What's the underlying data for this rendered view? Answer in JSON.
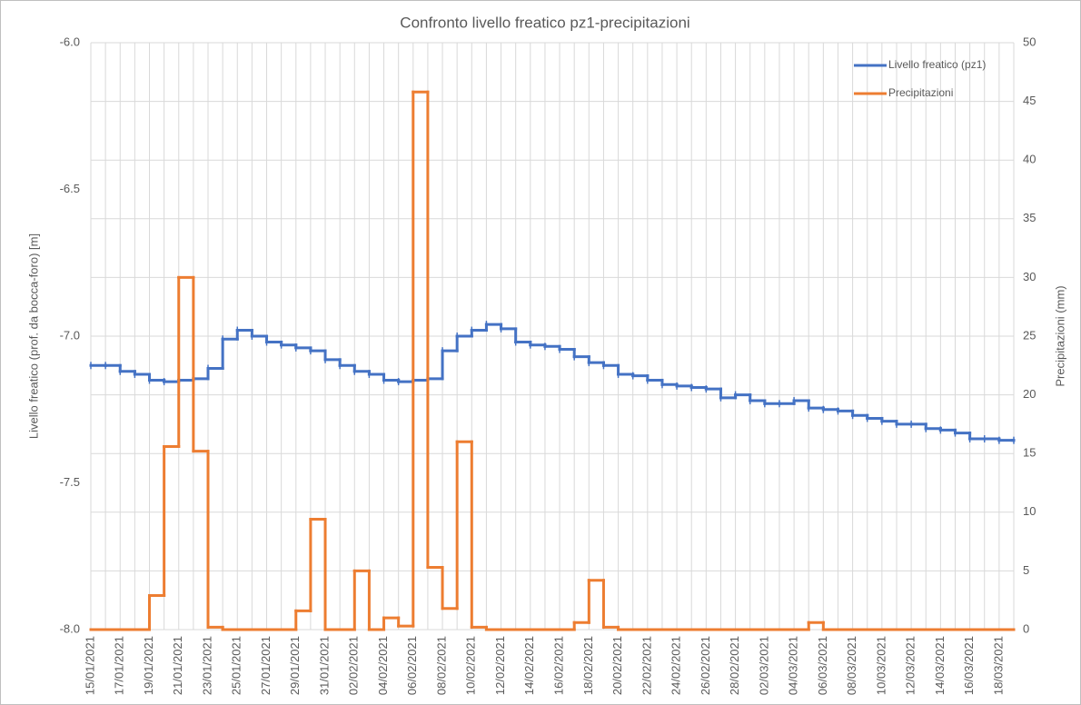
{
  "chart_data": {
    "type": "step-line",
    "title": "Confronto livello freatico pz1-precipitazioni",
    "y_label": "Livello freatico (prof. da bocca-foro) [m]",
    "y2_label": "Precipitazioni (mm)",
    "categories": [
      "15/01/2021",
      null,
      "17/01/2021",
      null,
      "19/01/2021",
      null,
      "21/01/2021",
      null,
      "23/01/2021",
      null,
      "25/01/2021",
      null,
      "27/01/2021",
      null,
      "29/01/2021",
      null,
      "31/01/2021",
      null,
      "02/02/2021",
      null,
      "04/02/2021",
      null,
      "06/02/2021",
      null,
      "08/02/2021",
      null,
      "10/02/2021",
      null,
      "12/02/2021",
      null,
      "14/02/2021",
      null,
      "16/02/2021",
      null,
      "18/02/2021",
      null,
      "20/02/2021",
      null,
      "22/02/2021",
      null,
      "24/02/2021",
      null,
      "26/02/2021",
      null,
      "28/02/2021",
      null,
      "02/03/2021",
      null,
      "04/03/2021",
      null,
      "06/03/2021",
      null,
      "08/03/2021",
      null,
      "10/03/2021",
      null,
      "12/03/2021",
      null,
      "14/03/2021",
      null,
      "16/03/2021",
      null,
      "18/03/2021",
      null
    ],
    "series": [
      {
        "name": "Livello freatico (pz1)",
        "color": "#4472c4",
        "axis": "y",
        "values": [
          -7.1,
          -7.1,
          -7.12,
          -7.13,
          -7.15,
          -7.155,
          -7.15,
          -7.145,
          -7.11,
          -7.01,
          -6.98,
          -7.0,
          -7.02,
          -7.03,
          -7.04,
          -7.05,
          -7.08,
          -7.1,
          -7.12,
          -7.13,
          -7.15,
          -7.155,
          -7.15,
          -7.145,
          -7.05,
          -7.0,
          -6.98,
          -6.96,
          -6.975,
          -7.02,
          -7.03,
          -7.035,
          -7.045,
          -7.07,
          -7.09,
          -7.1,
          -7.13,
          -7.135,
          -7.15,
          -7.165,
          -7.17,
          -7.175,
          -7.18,
          -7.21,
          -7.2,
          -7.22,
          -7.23,
          -7.23,
          -7.22,
          -7.245,
          -7.25,
          -7.255,
          -7.27,
          -7.28,
          -7.29,
          -7.3,
          -7.3,
          -7.315,
          -7.32,
          -7.33,
          -7.35,
          -7.35,
          -7.355,
          -7.355
        ]
      },
      {
        "name": "Precipitazioni",
        "color": "#ed7d31",
        "axis": "y2",
        "values": [
          0,
          0,
          0,
          0,
          2.9,
          15.6,
          30,
          15.2,
          0.2,
          0,
          0,
          0,
          0,
          0,
          1.6,
          9.4,
          0,
          0,
          5,
          0,
          1,
          0.3,
          45.8,
          5.3,
          1.8,
          16,
          0.2,
          0,
          0,
          0,
          0,
          0,
          0,
          0.6,
          4.2,
          0.2,
          0,
          0,
          0,
          0,
          0,
          0,
          0,
          0,
          0,
          0,
          0,
          0,
          0,
          0.6,
          0,
          0,
          0,
          0,
          0,
          0,
          0,
          0,
          0,
          0,
          0,
          0,
          0,
          0
        ]
      }
    ],
    "ylim": [
      -8,
      -6
    ],
    "yticks": [
      {
        "value": -6,
        "label": "-6.0"
      },
      -6.5,
      {
        "value": -7,
        "label": "-7.0"
      },
      -7.5,
      {
        "value": -8,
        "label": "-8.0"
      }
    ],
    "y2lim": [
      0,
      50
    ],
    "y2ticks": [
      0,
      5,
      10,
      15,
      20,
      25,
      30,
      35,
      40,
      45,
      50
    ],
    "grid": true,
    "legend": "top-right"
  }
}
